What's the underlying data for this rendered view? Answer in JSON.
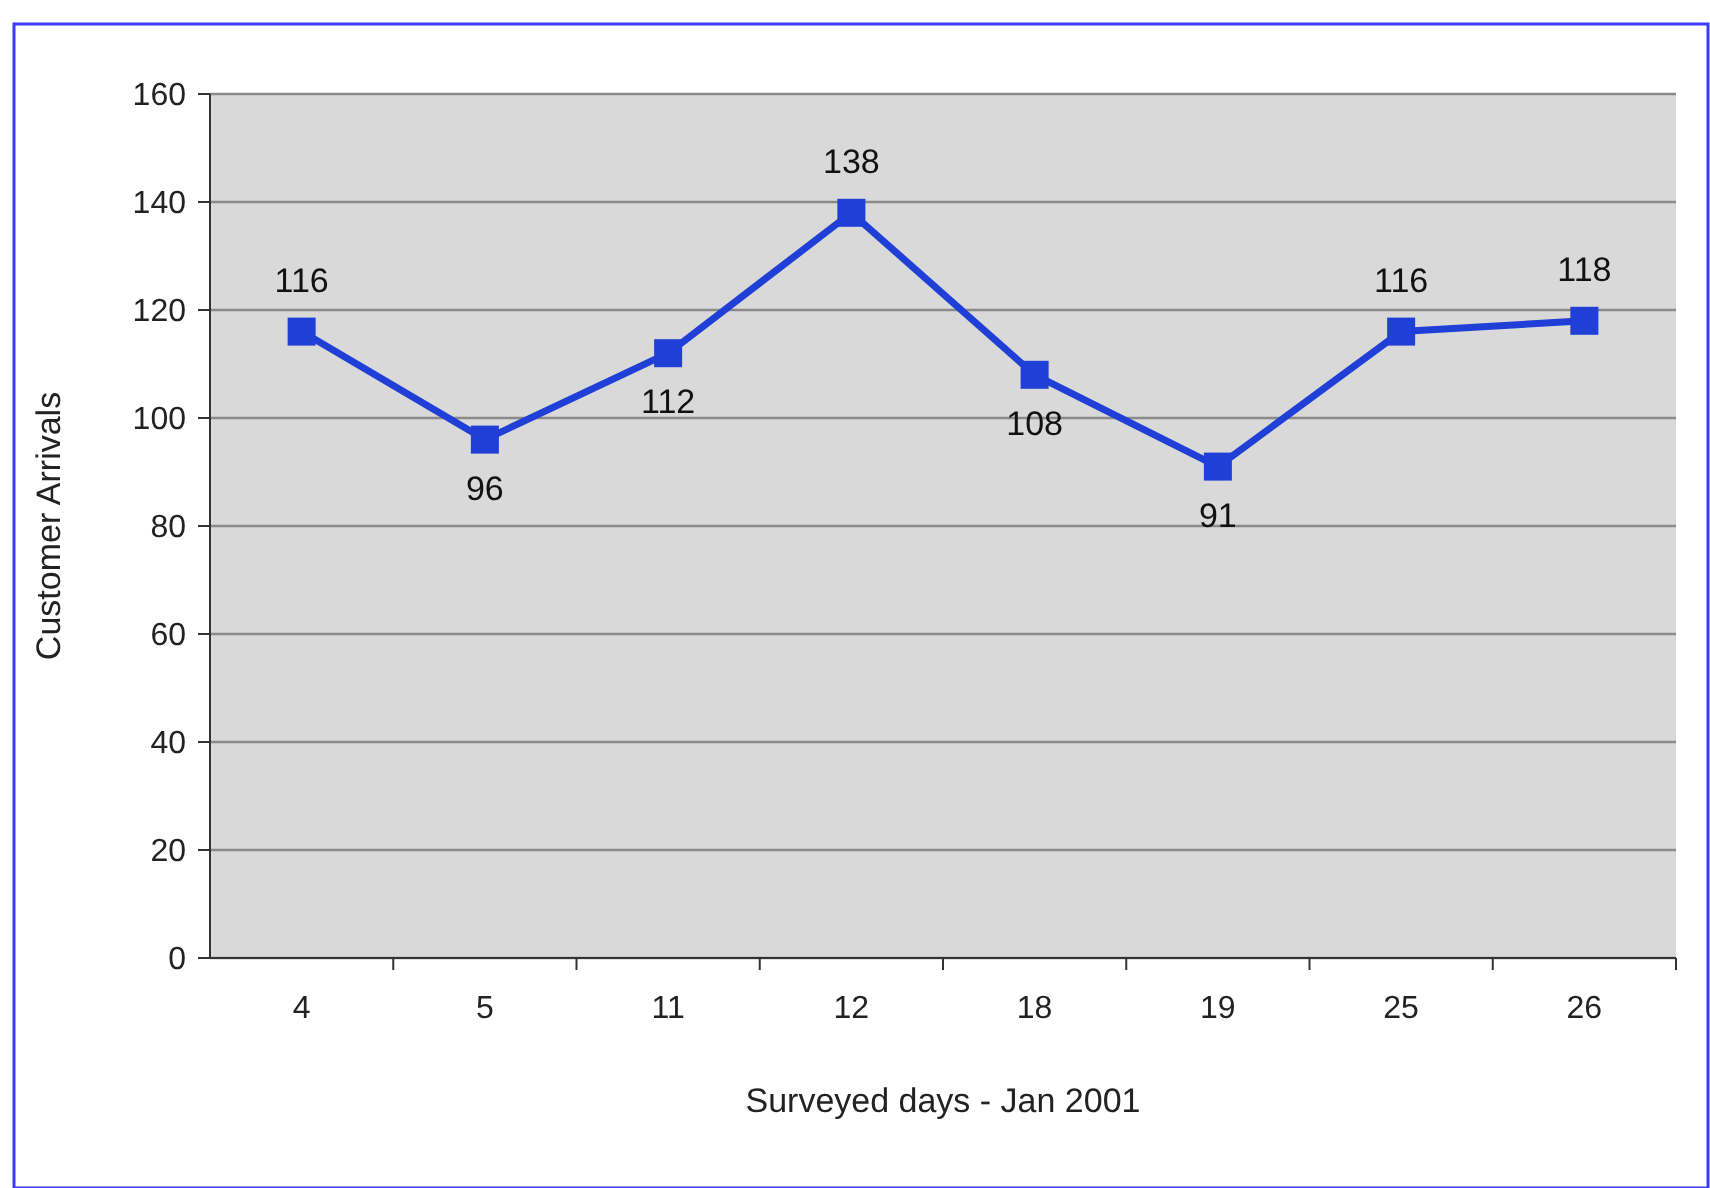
{
  "chart_data": {
    "type": "line",
    "xlabel": "Surveyed days - Jan 2001",
    "ylabel": "Customer Arrivals",
    "categories": [
      "4",
      "5",
      "11",
      "12",
      "18",
      "19",
      "25",
      "26"
    ],
    "series": [
      {
        "color": "#1f3fd6",
        "values": [
          116,
          96,
          112,
          138,
          108,
          91,
          116,
          118
        ]
      }
    ],
    "ylim": [
      0,
      160
    ],
    "yticks": [
      0,
      20,
      40,
      60,
      80,
      100,
      120,
      140,
      160
    ],
    "grid": "y",
    "marker": "square",
    "line_style": "solid",
    "data_labels": true
  }
}
